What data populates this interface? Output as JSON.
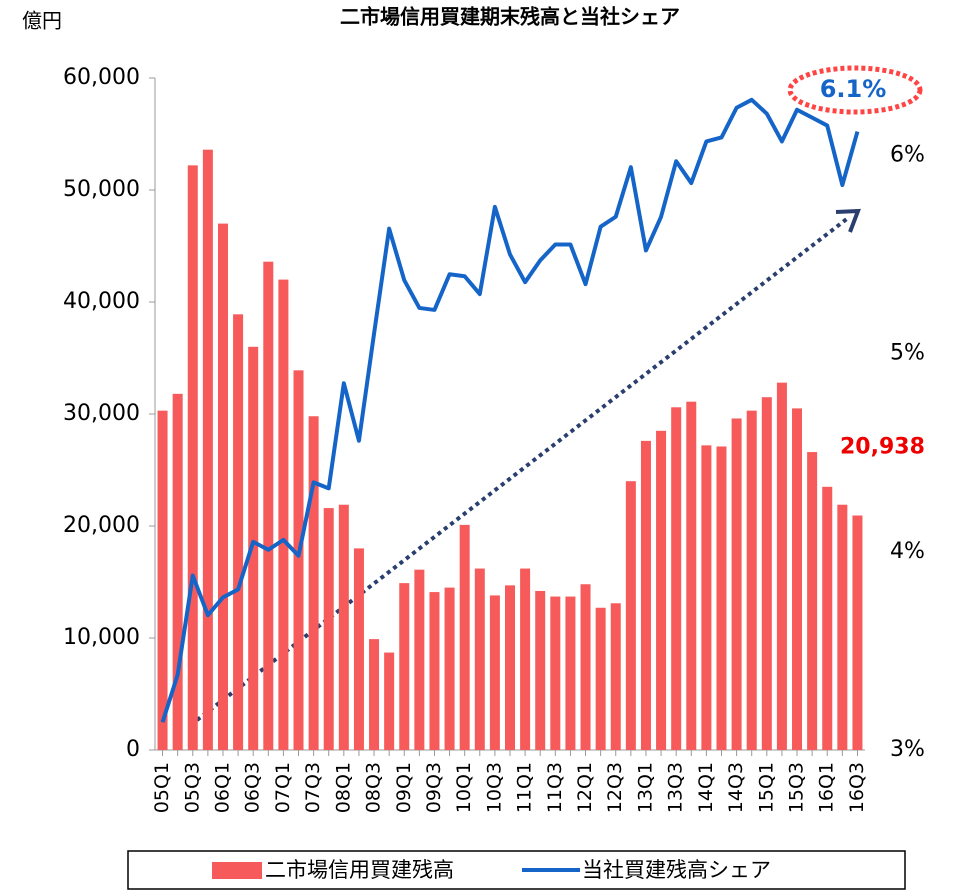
{
  "chart_data": {
    "type": "bar_line",
    "title": "二市場信用買建期末残高と当社シェア",
    "y_label": "億円",
    "categories": [
      "05Q1",
      null,
      "05Q3",
      null,
      "06Q1",
      null,
      "06Q3",
      null,
      "07Q1",
      null,
      "07Q3",
      null,
      "08Q1",
      null,
      "08Q3",
      null,
      "09Q1",
      null,
      "09Q3",
      null,
      "10Q1",
      null,
      "10Q3",
      null,
      "11Q1",
      null,
      "11Q3",
      null,
      "12Q1",
      null,
      "12Q3",
      null,
      "13Q1",
      null,
      "13Q3",
      null,
      "14Q1",
      null,
      "14Q3",
      null,
      "15Q1",
      null,
      "15Q3",
      null,
      "16Q1",
      null,
      "16Q3"
    ],
    "series": [
      {
        "name": "二市場信用買建残高",
        "type": "bar",
        "axis": "y",
        "color": "#f75a5a",
        "values": [
          30300,
          31800,
          52200,
          53600,
          47000,
          38900,
          36000,
          43600,
          42000,
          33900,
          29800,
          21600,
          21900,
          18000,
          9900,
          8700,
          14900,
          16100,
          14100,
          14500,
          20100,
          16200,
          13800,
          14700,
          16200,
          14200,
          13700,
          13700,
          14800,
          12700,
          13100,
          24000,
          27600,
          28500,
          30600,
          31100,
          27200,
          27100,
          29600,
          30300,
          31500,
          32800,
          30500,
          26600,
          23500,
          21900,
          20938
        ],
        "value_labels": [
          null,
          null,
          null,
          null,
          null,
          null,
          null,
          null,
          null,
          null,
          null,
          null,
          null,
          null,
          null,
          null,
          null,
          null,
          null,
          null,
          null,
          null,
          null,
          null,
          null,
          null,
          null,
          null,
          null,
          null,
          null,
          null,
          null,
          null,
          null,
          null,
          null,
          null,
          null,
          null,
          null,
          null,
          null,
          null,
          null,
          null,
          "20,938"
        ]
      },
      {
        "name": "当社買建残高シェア",
        "type": "line",
        "axis": "y2",
        "color": "#1565c8",
        "values": [
          3.14,
          3.38,
          3.88,
          3.68,
          3.77,
          3.81,
          4.05,
          4.01,
          4.06,
          3.98,
          4.35,
          4.32,
          4.85,
          4.56,
          5.1,
          5.63,
          5.37,
          5.23,
          5.22,
          5.4,
          5.39,
          5.3,
          5.74,
          5.5,
          5.36,
          5.47,
          5.55,
          5.55,
          5.35,
          5.64,
          5.69,
          5.94,
          5.52,
          5.69,
          5.97,
          5.86,
          6.07,
          6.09,
          6.24,
          6.28,
          6.21,
          6.07,
          6.23,
          6.19,
          6.15,
          5.85,
          6.12
        ],
        "value_labels": [
          null,
          null,
          null,
          null,
          null,
          null,
          null,
          null,
          null,
          null,
          null,
          null,
          null,
          null,
          null,
          null,
          null,
          null,
          null,
          null,
          null,
          null,
          null,
          null,
          null,
          null,
          null,
          null,
          null,
          null,
          null,
          null,
          null,
          null,
          null,
          null,
          null,
          null,
          null,
          null,
          null,
          null,
          null,
          null,
          null,
          null,
          "6.1%"
        ]
      }
    ],
    "ylim": [
      0,
      60000
    ],
    "yticks": [
      0,
      {
        "value": 10000,
        "label": "10,000"
      },
      {
        "value": 20000,
        "label": "20,000"
      },
      {
        "value": 30000,
        "label": "30,000"
      },
      {
        "value": 40000,
        "label": "40,000"
      },
      {
        "value": 50000,
        "label": "50,000"
      },
      {
        "value": 60000,
        "label": "60,000"
      }
    ],
    "y2lim": [
      3,
      6.39
    ],
    "y2ticks": [
      {
        "value": 3,
        "label": "3%"
      },
      {
        "value": 4,
        "label": "4%"
      },
      {
        "value": 5,
        "label": "5%"
      },
      {
        "value": 6,
        "label": "6%"
      }
    ],
    "legend": "bottom"
  }
}
